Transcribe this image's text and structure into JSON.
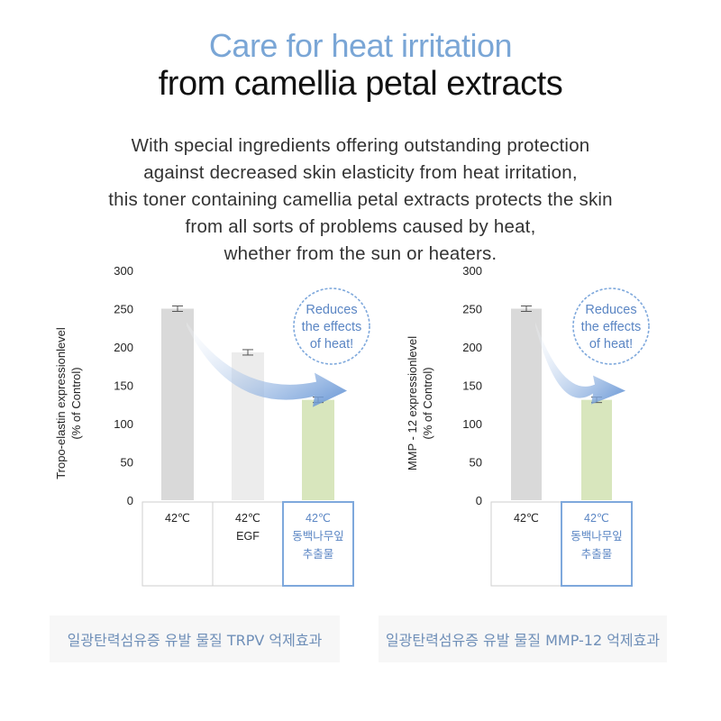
{
  "heading": {
    "line1": "Care for heat irritation",
    "line2": "from camellia petal extracts"
  },
  "description": [
    "With special ingredients offering outstanding protection",
    "against decreased skin elasticity from heat irritation,",
    "this toner containing camellia petal extracts protects the skin",
    "from all sorts of problems caused by heat,",
    "whether from the sun or heaters."
  ],
  "colors": {
    "accent_blue": "#7aa6d6",
    "bar_control": "#d9d9d9",
    "bar_egf": "#ececec",
    "bar_extract": "#d8e6bd",
    "callout_border": "#7ea8dc"
  },
  "chart_data": [
    {
      "type": "bar",
      "ylabel": "Tropo-elastin expressionlevel\n(% of Control)",
      "ylim": [
        0,
        300
      ],
      "yticks": [
        0,
        50,
        100,
        150,
        200,
        250,
        300
      ],
      "categories": [
        [
          "42℃"
        ],
        [
          "42℃",
          "EGF"
        ],
        [
          "42℃",
          "동백나무잎",
          "추출물"
        ]
      ],
      "values": [
        250,
        193,
        131
      ],
      "highlight_index": 2,
      "annotation": [
        "Reduces",
        "the effects",
        "of heat!"
      ],
      "caption": "일광탄력섬유증 유발 물질 TRPV 억제효과"
    },
    {
      "type": "bar",
      "ylabel": "MMP - 12 expressionlevel\n(% of Control)",
      "ylim": [
        0,
        300
      ],
      "yticks": [
        0,
        50,
        100,
        150,
        200,
        250,
        300
      ],
      "categories": [
        [
          "42℃"
        ],
        [
          "42℃",
          "동백나무잎",
          "추출물"
        ]
      ],
      "values": [
        250,
        131
      ],
      "highlight_index": 1,
      "annotation": [
        "Reduces",
        "the effects",
        "of heat!"
      ],
      "caption": "일광탄력섬유증 유발 물질 MMP-12 억제효과"
    }
  ]
}
